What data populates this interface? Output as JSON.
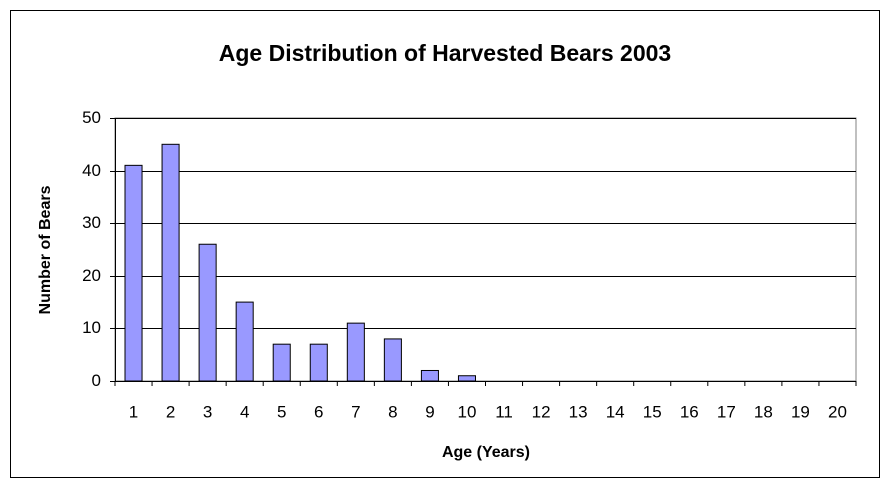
{
  "chart_data": {
    "type": "bar",
    "title": "Age Distribution of Harvested Bears 2003",
    "xlabel": "Age (Years)",
    "ylabel": "Number of Bears",
    "categories": [
      "1",
      "2",
      "3",
      "4",
      "5",
      "6",
      "7",
      "8",
      "9",
      "10",
      "11",
      "12",
      "13",
      "14",
      "15",
      "16",
      "17",
      "18",
      "19",
      "20"
    ],
    "values": [
      41,
      45,
      26,
      15,
      7,
      7,
      11,
      8,
      2,
      1,
      0,
      0,
      0,
      0,
      0,
      0,
      0,
      0,
      0,
      0
    ],
    "color": "#9999ff",
    "ylim": [
      0,
      50
    ],
    "yticks": [
      0,
      10,
      20,
      30,
      40,
      50
    ],
    "grid": true
  }
}
